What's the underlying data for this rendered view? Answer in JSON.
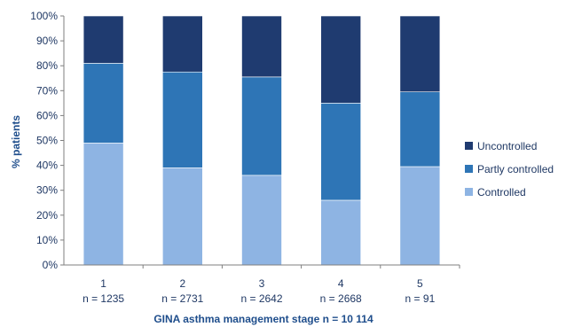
{
  "chart_data": {
    "type": "bar",
    "stacked": true,
    "categories": [
      "1",
      "2",
      "3",
      "4",
      "5"
    ],
    "category_sublabels": [
      "n = 1235",
      "n = 2731",
      "n = 2642",
      "n = 2668",
      "n = 91"
    ],
    "series": [
      {
        "name": "Controlled",
        "values": [
          49,
          39,
          36,
          26,
          39.5
        ],
        "color": "#8eb4e3"
      },
      {
        "name": "Partly controlled",
        "values": [
          32,
          38.5,
          39.5,
          39,
          30
        ],
        "color": "#2e75b6"
      },
      {
        "name": "Uncontrolled",
        "values": [
          19,
          22.5,
          24.5,
          35,
          30.5
        ],
        "color": "#1f3b70"
      }
    ],
    "title": "",
    "xlabel": "GINA asthma management stage n = 10 114",
    "ylabel": "% patients",
    "ylim": [
      0,
      100
    ],
    "yticks": [
      "0%",
      "10%",
      "20%",
      "30%",
      "40%",
      "50%",
      "60%",
      "70%",
      "80%",
      "90%",
      "100%"
    ],
    "legend_order": [
      "Uncontrolled",
      "Partly controlled",
      "Controlled"
    ],
    "legend_position": "right",
    "grid": false
  }
}
